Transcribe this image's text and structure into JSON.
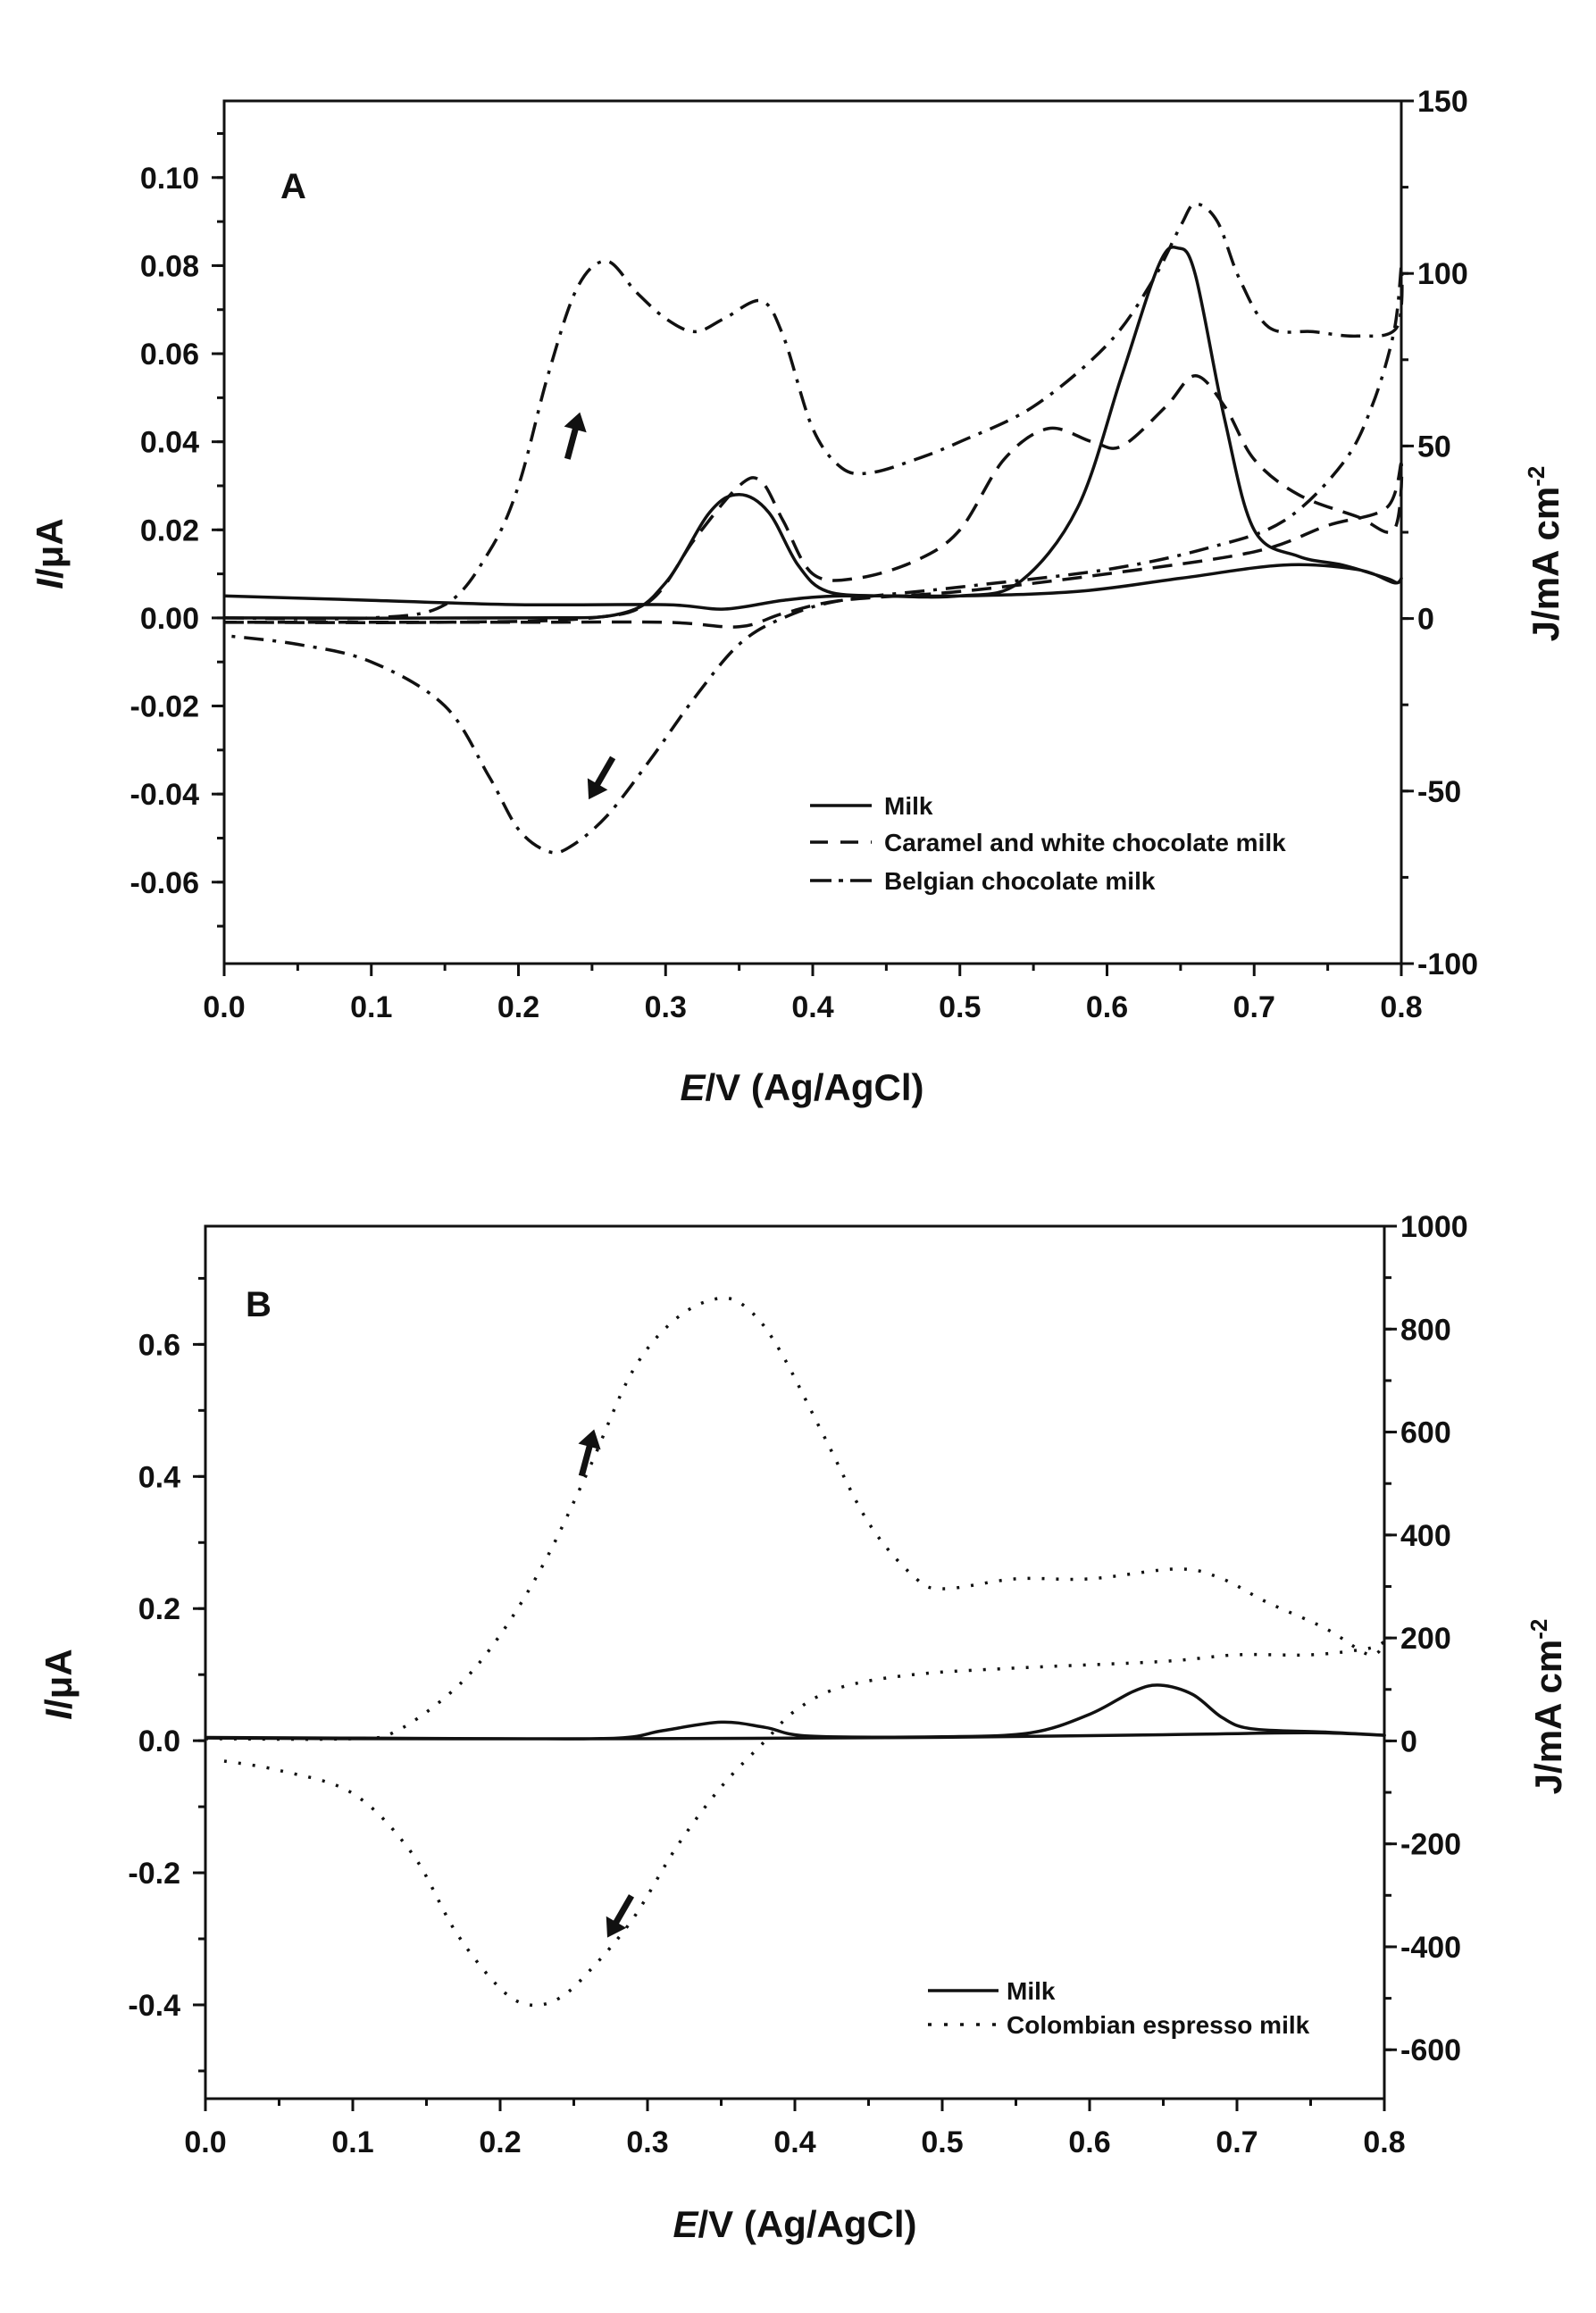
{
  "chart_data": [
    {
      "type": "line",
      "panel_label": "A",
      "xlabel_italic": "E",
      "xlabel_rest": "/V (Ag/AgCl)",
      "ylabel_italic": "I",
      "ylabel_rest": "/μA",
      "y2label": "J/mA cm",
      "y2label_sup": "-2",
      "xlim": [
        0.0,
        0.8
      ],
      "ylim": [
        -0.0785,
        0.1174
      ],
      "y2lim": [
        -100,
        150
      ],
      "xticks": [
        "0.0",
        "0.1",
        "0.2",
        "0.3",
        "0.4",
        "0.5",
        "0.6",
        "0.7",
        "0.8"
      ],
      "yticks": [
        "-0.06",
        "-0.04",
        "-0.02",
        "0.00",
        "0.02",
        "0.04",
        "0.06",
        "0.08",
        "0.10"
      ],
      "y2ticks": [
        "-100",
        "-50",
        "0",
        "50",
        "100",
        "150"
      ],
      "legend_position": "bottom-right",
      "grid": false,
      "series": [
        {
          "name": "Milk",
          "style": "solid",
          "points": [
            [
              0,
              0.0
            ],
            [
              0.2,
              0.0
            ],
            [
              0.27,
              0.001
            ],
            [
              0.3,
              0.008
            ],
            [
              0.33,
              0.024
            ],
            [
              0.35,
              0.028
            ],
            [
              0.37,
              0.024
            ],
            [
              0.39,
              0.012
            ],
            [
              0.41,
              0.006
            ],
            [
              0.45,
              0.005
            ],
            [
              0.5,
              0.005
            ],
            [
              0.54,
              0.008
            ],
            [
              0.58,
              0.025
            ],
            [
              0.61,
              0.055
            ],
            [
              0.635,
              0.08
            ],
            [
              0.648,
              0.084
            ],
            [
              0.66,
              0.078
            ],
            [
              0.68,
              0.045
            ],
            [
              0.7,
              0.02
            ],
            [
              0.73,
              0.014
            ],
            [
              0.76,
              0.012
            ],
            [
              0.79,
              0.009
            ],
            [
              0.797,
              0.008
            ],
            [
              0.8,
              0.009
            ],
            [
              0.795,
              0.008
            ],
            [
              0.77,
              0.011
            ],
            [
              0.72,
              0.012
            ],
            [
              0.65,
              0.009
            ],
            [
              0.58,
              0.006
            ],
            [
              0.5,
              0.005
            ],
            [
              0.42,
              0.005
            ],
            [
              0.38,
              0.004
            ],
            [
              0.34,
              0.002
            ],
            [
              0.3,
              0.003
            ],
            [
              0.2,
              0.003
            ],
            [
              0.1,
              0.004
            ],
            [
              0,
              0.005
            ]
          ]
        },
        {
          "name": "Caramel and white chocolate milk",
          "style": "dashed",
          "points": [
            [
              0,
              -0.001
            ],
            [
              0.15,
              -0.001
            ],
            [
              0.25,
              0.0
            ],
            [
              0.29,
              0.004
            ],
            [
              0.32,
              0.018
            ],
            [
              0.35,
              0.03
            ],
            [
              0.365,
              0.031
            ],
            [
              0.38,
              0.022
            ],
            [
              0.4,
              0.01
            ],
            [
              0.43,
              0.009
            ],
            [
              0.47,
              0.013
            ],
            [
              0.5,
              0.02
            ],
            [
              0.53,
              0.036
            ],
            [
              0.56,
              0.043
            ],
            [
              0.59,
              0.04
            ],
            [
              0.61,
              0.039
            ],
            [
              0.64,
              0.048
            ],
            [
              0.66,
              0.055
            ],
            [
              0.68,
              0.048
            ],
            [
              0.7,
              0.036
            ],
            [
              0.73,
              0.028
            ],
            [
              0.77,
              0.023
            ],
            [
              0.795,
              0.02
            ],
            [
              0.8,
              0.035
            ],
            [
              0.79,
              0.025
            ],
            [
              0.75,
              0.021
            ],
            [
              0.7,
              0.015
            ],
            [
              0.6,
              0.01
            ],
            [
              0.5,
              0.006
            ],
            [
              0.42,
              0.004
            ],
            [
              0.38,
              0.001
            ],
            [
              0.35,
              -0.002
            ],
            [
              0.3,
              -0.001
            ],
            [
              0.2,
              -0.001
            ],
            [
              0,
              -0.001
            ]
          ]
        },
        {
          "name": "Belgian chocolate milk",
          "style": "dashdot",
          "points": [
            [
              0,
              0.0
            ],
            [
              0.1,
              0.0
            ],
            [
              0.15,
              0.003
            ],
            [
              0.18,
              0.015
            ],
            [
              0.2,
              0.03
            ],
            [
              0.22,
              0.055
            ],
            [
              0.24,
              0.075
            ],
            [
              0.26,
              0.081
            ],
            [
              0.28,
              0.074
            ],
            [
              0.3,
              0.068
            ],
            [
              0.32,
              0.065
            ],
            [
              0.34,
              0.068
            ],
            [
              0.365,
              0.072
            ],
            [
              0.38,
              0.064
            ],
            [
              0.4,
              0.043
            ],
            [
              0.42,
              0.034
            ],
            [
              0.44,
              0.033
            ],
            [
              0.47,
              0.036
            ],
            [
              0.5,
              0.04
            ],
            [
              0.55,
              0.048
            ],
            [
              0.6,
              0.062
            ],
            [
              0.63,
              0.076
            ],
            [
              0.65,
              0.089
            ],
            [
              0.66,
              0.094
            ],
            [
              0.675,
              0.09
            ],
            [
              0.69,
              0.077
            ],
            [
              0.71,
              0.066
            ],
            [
              0.74,
              0.065
            ],
            [
              0.77,
              0.064
            ],
            [
              0.797,
              0.066
            ],
            [
              0.8,
              0.08
            ],
            [
              0.795,
              0.065
            ],
            [
              0.78,
              0.048
            ],
            [
              0.76,
              0.035
            ],
            [
              0.72,
              0.022
            ],
            [
              0.67,
              0.016
            ],
            [
              0.6,
              0.011
            ],
            [
              0.5,
              0.007
            ],
            [
              0.42,
              0.004
            ],
            [
              0.38,
              0.0
            ],
            [
              0.35,
              -0.006
            ],
            [
              0.32,
              -0.018
            ],
            [
              0.29,
              -0.032
            ],
            [
              0.26,
              -0.045
            ],
            [
              0.235,
              -0.052
            ],
            [
              0.22,
              -0.053
            ],
            [
              0.2,
              -0.048
            ],
            [
              0.18,
              -0.036
            ],
            [
              0.15,
              -0.02
            ],
            [
              0.1,
              -0.01
            ],
            [
              0.05,
              -0.006
            ],
            [
              0,
              -0.004
            ]
          ]
        }
      ],
      "arrows": [
        {
          "at": [
            0.238,
            0.042
          ],
          "direction": "up"
        },
        {
          "at": [
            0.255,
            -0.037
          ],
          "direction": "down-left"
        }
      ]
    },
    {
      "type": "line",
      "panel_label": "B",
      "xlabel_italic": "E",
      "xlabel_rest": "/V (Ag/AgCl)",
      "ylabel_italic": "I",
      "ylabel_rest": "/μA",
      "y2label": "J/mA cm",
      "y2label_sup": "-2",
      "xlim": [
        0.0,
        0.8
      ],
      "ylim": [
        -0.542,
        0.779
      ],
      "y2lim": [
        -695,
        1000
      ],
      "xticks": [
        "0.0",
        "0.1",
        "0.2",
        "0.3",
        "0.4",
        "0.5",
        "0.6",
        "0.7",
        "0.8"
      ],
      "yticks": [
        "-0.4",
        "-0.2",
        "0.0",
        "0.2",
        "0.4",
        "0.6"
      ],
      "y2ticks": [
        "-600",
        "-400",
        "-200",
        "0",
        "200",
        "400",
        "600",
        "800",
        "1000"
      ],
      "legend_position": "bottom-right",
      "grid": false,
      "series": [
        {
          "name": "Milk",
          "style": "solid",
          "points": [
            [
              0,
              0.005
            ],
            [
              0.2,
              0.003
            ],
            [
              0.28,
              0.004
            ],
            [
              0.31,
              0.015
            ],
            [
              0.35,
              0.028
            ],
            [
              0.38,
              0.02
            ],
            [
              0.41,
              0.007
            ],
            [
              0.5,
              0.006
            ],
            [
              0.56,
              0.012
            ],
            [
              0.6,
              0.04
            ],
            [
              0.63,
              0.075
            ],
            [
              0.648,
              0.084
            ],
            [
              0.67,
              0.07
            ],
            [
              0.69,
              0.035
            ],
            [
              0.71,
              0.018
            ],
            [
              0.76,
              0.013
            ],
            [
              0.8,
              0.008
            ],
            [
              0.75,
              0.012
            ],
            [
              0.65,
              0.009
            ],
            [
              0.5,
              0.005
            ],
            [
              0.4,
              0.004
            ],
            [
              0.3,
              0.003
            ],
            [
              0.1,
              0.003
            ],
            [
              0,
              0.004
            ]
          ]
        },
        {
          "name": "Colombian espresso milk",
          "style": "dotted",
          "points": [
            [
              0,
              0.003
            ],
            [
              0.1,
              0.003
            ],
            [
              0.13,
              0.015
            ],
            [
              0.17,
              0.08
            ],
            [
              0.2,
              0.16
            ],
            [
              0.23,
              0.27
            ],
            [
              0.26,
              0.41
            ],
            [
              0.29,
              0.56
            ],
            [
              0.32,
              0.64
            ],
            [
              0.35,
              0.67
            ],
            [
              0.37,
              0.65
            ],
            [
              0.39,
              0.59
            ],
            [
              0.42,
              0.46
            ],
            [
              0.45,
              0.33
            ],
            [
              0.48,
              0.25
            ],
            [
              0.5,
              0.23
            ],
            [
              0.55,
              0.245
            ],
            [
              0.6,
              0.245
            ],
            [
              0.66,
              0.26
            ],
            [
              0.69,
              0.245
            ],
            [
              0.72,
              0.21
            ],
            [
              0.76,
              0.17
            ],
            [
              0.79,
              0.13
            ],
            [
              0.8,
              0.15
            ],
            [
              0.79,
              0.14
            ],
            [
              0.75,
              0.13
            ],
            [
              0.7,
              0.13
            ],
            [
              0.65,
              0.12
            ],
            [
              0.55,
              0.11
            ],
            [
              0.48,
              0.1
            ],
            [
              0.43,
              0.08
            ],
            [
              0.4,
              0.045
            ],
            [
              0.38,
              0.0
            ],
            [
              0.35,
              -0.07
            ],
            [
              0.32,
              -0.16
            ],
            [
              0.29,
              -0.27
            ],
            [
              0.26,
              -0.35
            ],
            [
              0.24,
              -0.39
            ],
            [
              0.22,
              -0.4
            ],
            [
              0.2,
              -0.375
            ],
            [
              0.17,
              -0.29
            ],
            [
              0.14,
              -0.17
            ],
            [
              0.1,
              -0.08
            ],
            [
              0.05,
              -0.045
            ],
            [
              0.01,
              -0.03
            ]
          ]
        }
      ],
      "arrows": [
        {
          "at": [
            0.26,
            0.44
          ],
          "direction": "up"
        },
        {
          "at": [
            0.28,
            -0.27
          ],
          "direction": "down-left"
        }
      ]
    }
  ]
}
